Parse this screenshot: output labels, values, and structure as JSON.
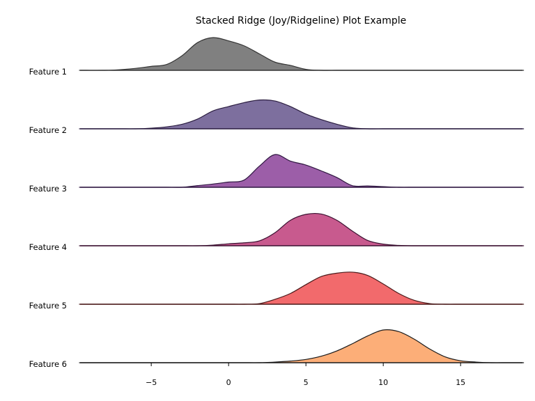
{
  "chart_data": {
    "type": "area",
    "title": "Stacked Ridge (Joy/Ridgeline) Plot Example",
    "xlabel": "",
    "ylabel": "",
    "xlim": [
      -9.6,
      19
    ],
    "xticks": [
      -5,
      0,
      5,
      10,
      15
    ],
    "xtick_labels": [
      "−5",
      "0",
      "5",
      "10",
      "15"
    ],
    "grid": false,
    "x": [
      -9.5,
      -8,
      -7,
      -6,
      -5,
      -4,
      -3,
      -2,
      -1,
      0,
      1,
      2,
      3,
      4,
      5,
      6,
      7,
      8,
      9,
      10,
      11,
      12,
      13,
      14,
      15,
      16,
      17,
      18,
      19
    ],
    "series": [
      {
        "name": "Feature 1",
        "fill": "#808080",
        "edge": "#333333",
        "values": [
          0.0,
          0.0,
          0.02,
          0.06,
          0.12,
          0.18,
          0.45,
          0.85,
          1.0,
          0.9,
          0.75,
          0.5,
          0.25,
          0.15,
          0.03,
          0.0,
          0.0,
          0.0,
          0.0,
          0.0,
          0.0,
          0.0,
          0.0,
          0.0,
          0.0,
          0.0,
          0.0,
          0.0,
          0.0
        ]
      },
      {
        "name": "Feature 2",
        "fill": "#7d6f9e",
        "edge": "#2b1d40",
        "values": [
          0.0,
          0.0,
          0.0,
          0.0,
          0.02,
          0.06,
          0.14,
          0.3,
          0.55,
          0.68,
          0.8,
          0.88,
          0.85,
          0.68,
          0.45,
          0.28,
          0.14,
          0.03,
          0.0,
          0.0,
          0.0,
          0.0,
          0.0,
          0.0,
          0.0,
          0.0,
          0.0,
          0.0,
          0.0
        ]
      },
      {
        "name": "Feature 3",
        "fill": "#9c5ea8",
        "edge": "#2e1640",
        "values": [
          0.0,
          0.0,
          0.0,
          0.0,
          0.0,
          0.0,
          0.0,
          0.05,
          0.1,
          0.16,
          0.22,
          0.65,
          1.0,
          0.8,
          0.68,
          0.5,
          0.3,
          0.05,
          0.04,
          0.02,
          0.0,
          0.0,
          0.0,
          0.0,
          0.0,
          0.0,
          0.0,
          0.0,
          0.0
        ]
      },
      {
        "name": "Feature 4",
        "fill": "#c85a8e",
        "edge": "#3b1030",
        "values": [
          0.0,
          0.0,
          0.0,
          0.0,
          0.0,
          0.0,
          0.0,
          0.0,
          0.02,
          0.06,
          0.09,
          0.15,
          0.4,
          0.78,
          0.96,
          0.97,
          0.78,
          0.45,
          0.16,
          0.05,
          0.01,
          0.0,
          0.0,
          0.0,
          0.0,
          0.0,
          0.0,
          0.0,
          0.0
        ]
      },
      {
        "name": "Feature 5",
        "fill": "#f26a6c",
        "edge": "#4a1a1a",
        "values": [
          0.0,
          0.0,
          0.0,
          0.0,
          0.0,
          0.0,
          0.0,
          0.0,
          0.0,
          0.0,
          0.0,
          0.02,
          0.15,
          0.33,
          0.6,
          0.85,
          0.95,
          0.98,
          0.88,
          0.62,
          0.33,
          0.12,
          0.02,
          0.0,
          0.0,
          0.0,
          0.0,
          0.0,
          0.0
        ]
      },
      {
        "name": "Feature 6",
        "fill": "#fcae78",
        "edge": "#1a1a1a",
        "values": [
          0.0,
          0.0,
          0.0,
          0.0,
          0.0,
          0.0,
          0.0,
          0.0,
          0.0,
          0.0,
          0.0,
          0.0,
          0.02,
          0.05,
          0.1,
          0.2,
          0.36,
          0.58,
          0.82,
          1.0,
          0.95,
          0.72,
          0.42,
          0.18,
          0.06,
          0.02,
          0.0,
          0.0,
          0.0
        ]
      }
    ]
  }
}
